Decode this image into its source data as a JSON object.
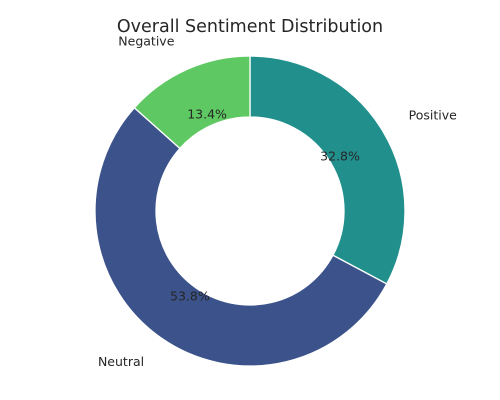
{
  "chart_data": {
    "type": "pie",
    "variant": "donut",
    "title": "Overall Sentiment Distribution",
    "categories": [
      "Positive",
      "Neutral",
      "Negative"
    ],
    "values": [
      32.8,
      53.8,
      13.4
    ],
    "value_labels": [
      "32.8%",
      "53.8%",
      "13.4%"
    ],
    "colors": [
      "#21908d",
      "#3b528b",
      "#5ec962"
    ],
    "start_angle_deg": 90,
    "direction": "clockwise",
    "legend": "none"
  }
}
